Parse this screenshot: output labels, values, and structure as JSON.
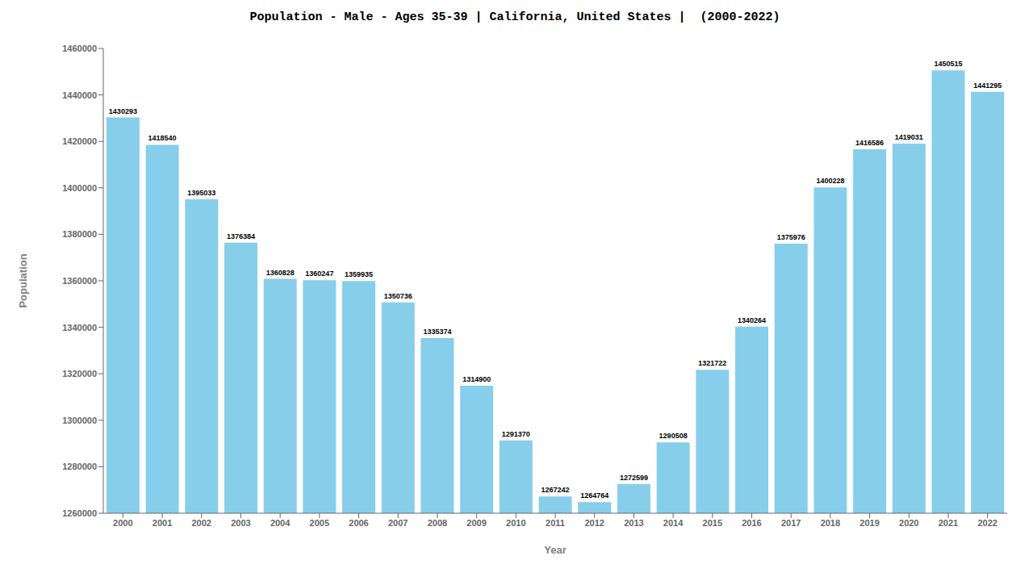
{
  "chart_data": {
    "type": "bar",
    "title": "Population - Male - Ages 35-39 | California, United States |  (2000-2022)",
    "x_label": "Year",
    "y_label": "Population",
    "categories": [
      "2000",
      "2001",
      "2002",
      "2003",
      "2004",
      "2005",
      "2006",
      "2007",
      "2008",
      "2009",
      "2010",
      "2011",
      "2012",
      "2013",
      "2014",
      "2015",
      "2016",
      "2017",
      "2018",
      "2019",
      "2020",
      "2021",
      "2022"
    ],
    "values": [
      1430293,
      1418540,
      1395033,
      1376384,
      1360828,
      1360247,
      1359935,
      1350736,
      1335374,
      1314900,
      1291370,
      1267242,
      1264764,
      1272599,
      1290508,
      1321722,
      1340264,
      1375976,
      1400228,
      1416586,
      1419031,
      1450515,
      1441295
    ],
    "color": "#87CEEB",
    "ylim": [
      1260000,
      1460000
    ],
    "yticks": [
      1260000,
      1280000,
      1300000,
      1320000,
      1340000,
      1360000,
      1380000,
      1400000,
      1420000,
      1440000,
      1460000
    ],
    "grid": false,
    "data_labels": true
  }
}
